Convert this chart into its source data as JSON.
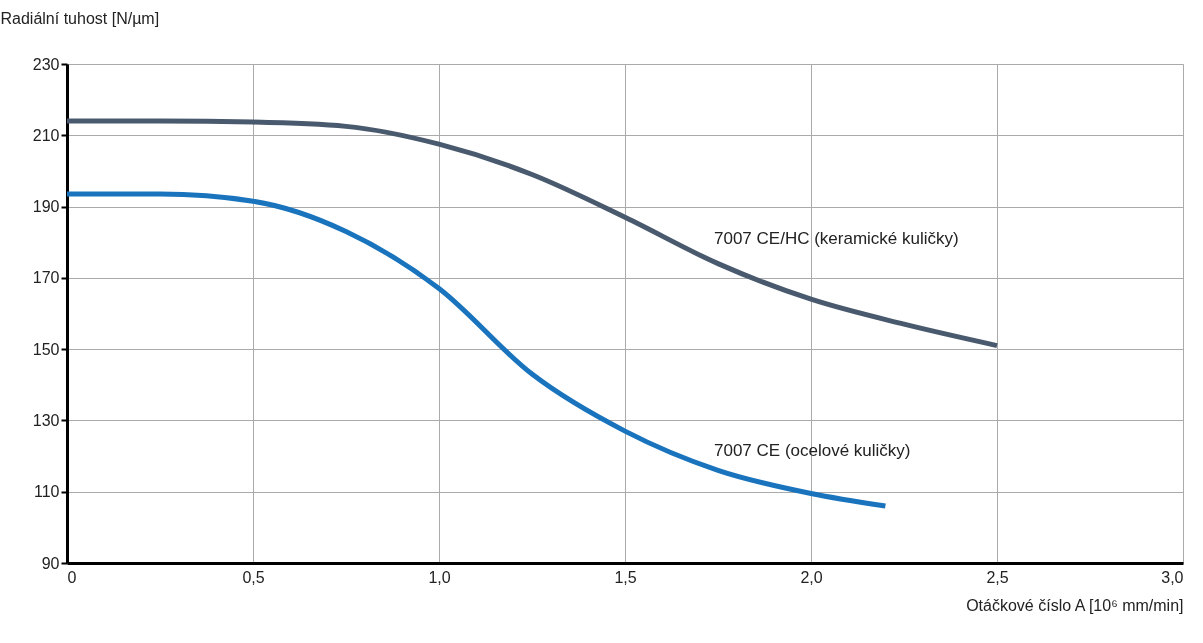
{
  "chart_data": {
    "type": "line",
    "xlabel": "Otáčkové číslo A [10⁶ mm/min]",
    "ylabel": "Radiální tuhost [N/µm]",
    "xlim": [
      0,
      3.0
    ],
    "ylim": [
      90,
      230
    ],
    "xticks": [
      0,
      {
        "value": 0.5,
        "label": "0,5"
      },
      {
        "value": 1.0,
        "label": "1,0"
      },
      {
        "value": 1.5,
        "label": "1,5"
      },
      {
        "value": 2.0,
        "label": "2,0"
      },
      {
        "value": 2.5,
        "label": "2,5"
      },
      {
        "value": 3.0,
        "label": "3,0"
      }
    ],
    "yticks": [
      90,
      110,
      130,
      150,
      170,
      190,
      210,
      230
    ],
    "grid": true,
    "legend": false,
    "marker": "none",
    "line_style": "solid",
    "series": [
      {
        "name": "7007 CE/HC (keramické kuličky)",
        "color": "#4a5a6e",
        "x": [
          0,
          0.25,
          0.5,
          0.75,
          1.0,
          1.25,
          1.5,
          1.75,
          2.0,
          2.25,
          2.5
        ],
        "values": [
          214,
          214,
          213.7,
          212.5,
          207.5,
          199,
          187,
          174,
          164,
          157,
          151
        ]
      },
      {
        "name": "7007 CE (ocelové kuličky)",
        "color": "#1a74bd",
        "x": [
          0,
          0.25,
          0.5,
          0.75,
          1.0,
          1.25,
          1.5,
          1.75,
          2.0,
          2.2
        ],
        "values": [
          193.5,
          193.5,
          191.5,
          183,
          167,
          143,
          127,
          116,
          109.5,
          106
        ]
      }
    ]
  }
}
